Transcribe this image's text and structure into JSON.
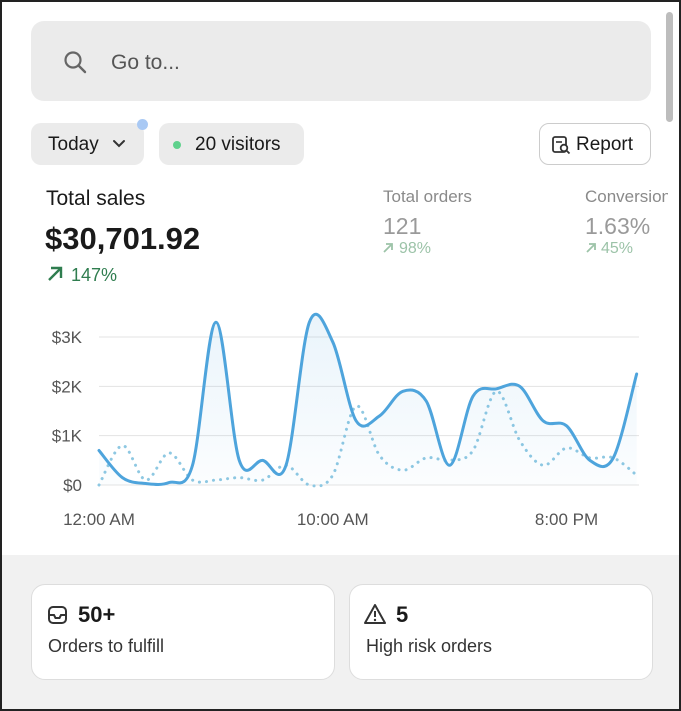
{
  "search": {
    "placeholder": "Go to..."
  },
  "filters": {
    "date": "Today",
    "visitors": "20 visitors",
    "report": "Report"
  },
  "metrics": [
    {
      "label": "Total sales",
      "value": "$30,701.92",
      "change": "147%"
    },
    {
      "label": "Total orders",
      "value": "121",
      "change": "98%"
    },
    {
      "label": "Conversion",
      "value": "1.63%",
      "change": "45%"
    }
  ],
  "chart_data": {
    "type": "line",
    "categories": [
      "12:00 AM",
      null,
      null,
      null,
      null,
      null,
      null,
      null,
      null,
      null,
      "10:00 AM",
      null,
      null,
      null,
      null,
      null,
      null,
      null,
      null,
      null,
      "8:00 PM",
      null,
      null,
      null
    ],
    "series": [
      {
        "color": "#4ea4dc",
        "values": [
          700,
          150,
          30,
          50,
          400,
          3300,
          500,
          500,
          400,
          3300,
          2900,
          1300,
          1400,
          1900,
          1700,
          400,
          1800,
          1950,
          2000,
          1300,
          1200,
          500,
          550,
          2250
        ]
      },
      {
        "color": "#8ec8e2",
        "values": [
          0,
          800,
          100,
          650,
          100,
          100,
          150,
          100,
          400,
          0,
          200,
          1600,
          600,
          300,
          550,
          500,
          700,
          1900,
          900,
          400,
          750,
          550,
          550,
          200
        ]
      }
    ],
    "ylim": [
      0,
      3000
    ],
    "yticks": [
      {
        "value": 0,
        "label": "$0"
      },
      {
        "value": 1000,
        "label": "$1K"
      },
      {
        "value": 2000,
        "label": "$2K"
      },
      {
        "value": 3000,
        "label": "$3K"
      }
    ],
    "grid": true
  },
  "cards": [
    {
      "value": "50+",
      "label": "Orders to fulfill"
    },
    {
      "value": "5",
      "label": "High risk orders"
    }
  ]
}
